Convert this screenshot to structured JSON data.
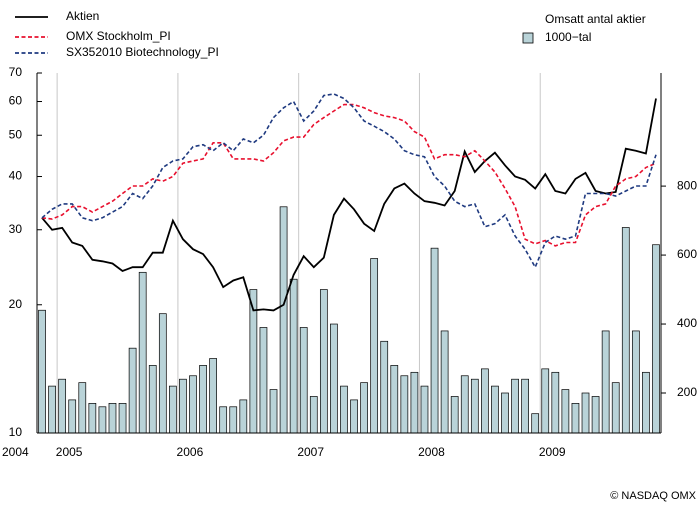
{
  "chart_data": {
    "type": "line_bar",
    "categories": [
      "2004",
      null,
      "2005",
      null,
      null,
      null,
      null,
      null,
      null,
      null,
      null,
      null,
      null,
      null,
      "2006",
      null,
      null,
      null,
      null,
      null,
      null,
      null,
      null,
      null,
      null,
      null,
      "2007",
      null,
      null,
      null,
      null,
      null,
      null,
      null,
      null,
      null,
      null,
      null,
      "2008",
      null,
      null,
      null,
      null,
      null,
      null,
      null,
      null,
      null,
      null,
      null,
      "2009",
      null,
      null,
      null,
      null,
      null,
      null,
      null,
      null,
      null,
      null,
      null
    ],
    "series": [
      {
        "name": "Aktien",
        "color": "#000000",
        "dashed": false,
        "values": [
          32,
          30,
          30.3,
          28,
          27.5,
          25.5,
          25.3,
          25,
          24,
          24.5,
          24.5,
          26.5,
          26.5,
          31.5,
          28.5,
          27,
          26.3,
          24.5,
          22,
          22.8,
          23.2,
          19.4,
          19.5,
          19.4,
          20,
          23.5,
          26,
          24.5,
          25.8,
          32.5,
          35.5,
          33.5,
          31,
          29.8,
          34.5,
          37.5,
          38.5,
          36.5,
          35,
          34.7,
          34.2,
          37,
          45.8,
          41,
          43.5,
          45.5,
          42.5,
          40,
          39.3,
          37.5,
          40.5,
          37,
          36.5,
          39.5,
          40.8,
          37,
          36.5,
          36.8,
          46.5,
          46,
          45.3,
          61
        ]
      },
      {
        "name": "OMX Stockholm_PI",
        "color": "#e8102e",
        "dashed": true,
        "values": [
          32,
          31.8,
          32.5,
          34,
          34,
          33,
          34,
          35,
          36.5,
          38,
          38,
          39.5,
          39,
          40,
          43,
          43.5,
          44,
          48,
          48,
          44,
          44,
          44,
          43.5,
          45.5,
          48.5,
          49.5,
          49.5,
          53,
          55,
          57,
          59,
          59,
          58,
          56.5,
          55.5,
          55,
          54,
          51,
          49.5,
          44,
          45,
          45,
          44.5,
          46,
          43.5,
          41,
          37.5,
          34,
          28.5,
          27.8,
          28.3,
          27.5,
          28,
          28,
          32.5,
          34,
          34.5,
          38,
          39.5,
          40,
          42,
          43
        ]
      },
      {
        "name": "SX352010 Biotechnology_PI",
        "color": "#1f3a80",
        "dashed": true,
        "values": [
          32,
          33.5,
          34.5,
          34.5,
          32,
          31.5,
          32,
          33,
          34,
          36.5,
          35.5,
          38,
          42,
          43.5,
          44,
          47,
          47.5,
          46,
          48,
          46,
          49,
          48,
          50,
          55,
          58,
          60,
          54,
          57,
          62,
          62.5,
          61,
          58,
          54,
          52.5,
          51,
          49,
          46,
          45,
          44.5,
          40,
          38,
          35,
          34,
          34.5,
          30.5,
          31,
          32.5,
          29,
          27,
          24.5,
          28,
          29,
          28.5,
          29,
          36.5,
          36.5,
          36.5,
          36,
          37,
          38,
          38,
          45
        ]
      },
      {
        "name": "Omsatt antal aktier",
        "color": "#b9d3d8",
        "axis": "y2",
        "kind": "bar",
        "values": [
          440,
          220,
          240,
          180,
          230,
          170,
          160,
          170,
          170,
          330,
          550,
          280,
          430,
          220,
          240,
          250,
          280,
          300,
          160,
          160,
          180,
          500,
          390,
          210,
          740,
          530,
          390,
          190,
          500,
          400,
          220,
          180,
          230,
          590,
          350,
          280,
          250,
          260,
          220,
          620,
          380,
          190,
          250,
          240,
          270,
          220,
          200,
          240,
          240,
          140,
          270,
          260,
          210,
          170,
          200,
          190,
          380,
          230,
          680,
          380,
          260,
          630
        ]
      }
    ],
    "unit_label": "1000−tal",
    "ylim": [
      10,
      70
    ],
    "yticks": [
      10,
      20,
      30,
      40,
      50,
      60,
      70
    ],
    "log_scale": true,
    "y2lim": [
      84,
      1128
    ],
    "y2ticks": [
      200,
      400,
      600,
      800
    ],
    "source": "© NASDAQ OMX"
  }
}
